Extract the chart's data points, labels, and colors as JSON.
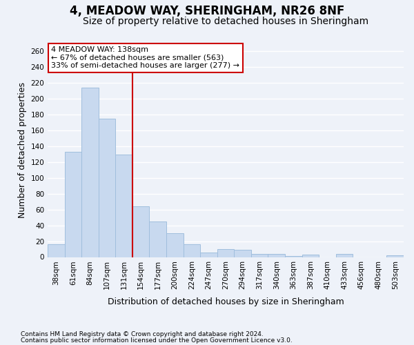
{
  "title": "4, MEADOW WAY, SHERINGHAM, NR26 8NF",
  "subtitle": "Size of property relative to detached houses in Sheringham",
  "xlabel": "Distribution of detached houses by size in Sheringham",
  "ylabel": "Number of detached properties",
  "bar_color": "#c8d9ef",
  "bar_edge_color": "#a0bedd",
  "categories": [
    "38sqm",
    "61sqm",
    "84sqm",
    "107sqm",
    "131sqm",
    "154sqm",
    "177sqm",
    "200sqm",
    "224sqm",
    "247sqm",
    "270sqm",
    "294sqm",
    "317sqm",
    "340sqm",
    "363sqm",
    "387sqm",
    "410sqm",
    "433sqm",
    "456sqm",
    "480sqm",
    "503sqm"
  ],
  "values": [
    16,
    133,
    214,
    175,
    129,
    64,
    45,
    30,
    16,
    6,
    10,
    9,
    4,
    4,
    1,
    3,
    0,
    4,
    0,
    0,
    2
  ],
  "ylim": [
    0,
    270
  ],
  "yticks": [
    0,
    20,
    40,
    60,
    80,
    100,
    120,
    140,
    160,
    180,
    200,
    220,
    240,
    260
  ],
  "vline_x": 4.5,
  "vline_color": "#cc0000",
  "annotation_title": "4 MEADOW WAY: 138sqm",
  "annotation_line1": "← 67% of detached houses are smaller (563)",
  "annotation_line2": "33% of semi-detached houses are larger (277) →",
  "annotation_box_color": "#ffffff",
  "annotation_box_edge": "#cc0000",
  "footnote1": "Contains HM Land Registry data © Crown copyright and database right 2024.",
  "footnote2": "Contains public sector information licensed under the Open Government Licence v3.0.",
  "background_color": "#eef2f9",
  "grid_color": "#ffffff",
  "title_fontsize": 12,
  "subtitle_fontsize": 10,
  "axis_label_fontsize": 9,
  "tick_fontsize": 7.5,
  "annotation_fontsize": 8,
  "footnote_fontsize": 6.5
}
